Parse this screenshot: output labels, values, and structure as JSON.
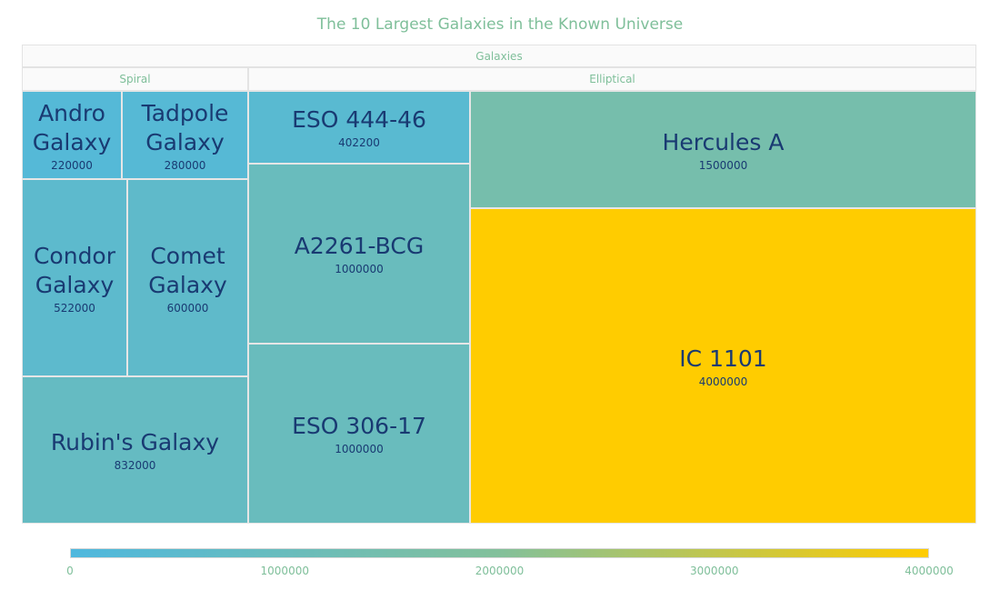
{
  "chart_data": {
    "type": "treemap",
    "title": "The 10 Largest Galaxies in the Known Universe",
    "root": "Galaxies",
    "groups": [
      {
        "name": "Spiral",
        "items": [
          {
            "name": "Andro Galaxy",
            "lines": [
              "Andro",
              "Galaxy"
            ],
            "value": 220000
          },
          {
            "name": "Tadpole Galaxy",
            "lines": [
              "Tadpole",
              "Galaxy"
            ],
            "value": 280000
          },
          {
            "name": "Condor Galaxy",
            "lines": [
              "Condor",
              "Galaxy"
            ],
            "value": 522000
          },
          {
            "name": "Comet Galaxy",
            "lines": [
              "Comet",
              "Galaxy"
            ],
            "value": 600000
          },
          {
            "name": "Rubin's Galaxy",
            "lines": [
              "Rubin's Galaxy"
            ],
            "value": 832000
          }
        ]
      },
      {
        "name": "Elliptical",
        "items": [
          {
            "name": "ESO 444-46",
            "lines": [
              "ESO 444-46"
            ],
            "value": 402200
          },
          {
            "name": "A2261-BCG",
            "lines": [
              "A2261-BCG"
            ],
            "value": 1000000
          },
          {
            "name": "ESO 306-17",
            "lines": [
              "ESO 306-17"
            ],
            "value": 1000000
          },
          {
            "name": "Hercules A",
            "lines": [
              "Hercules A"
            ],
            "value": 1500000
          },
          {
            "name": "IC 1101",
            "lines": [
              "IC 1101"
            ],
            "value": 4000000
          }
        ]
      }
    ],
    "color_scale": {
      "min": 0,
      "max": 4000000,
      "colors": [
        "#4fb8de",
        "#83c09b",
        "#ffcc00"
      ],
      "ticks": [
        "0",
        "1000000",
        "2000000",
        "3000000",
        "4000000"
      ]
    }
  }
}
